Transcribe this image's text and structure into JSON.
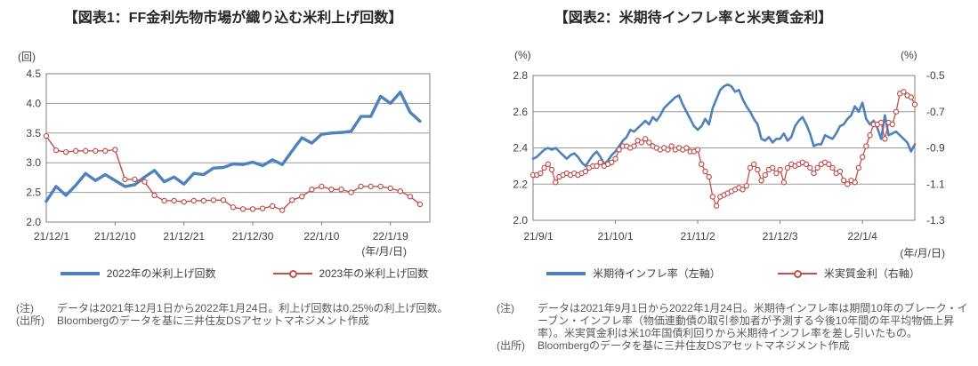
{
  "figure1": {
    "title": "【図表1：FF金利先物市場が織り込む米利上げ回数】",
    "y_unit": "(回)",
    "x_unit": "(年/月/日)",
    "notes": {
      "note_label": "(注)",
      "note_text": "データは2021年12月1日から2022年1月24日。利上げ回数は0.25%の利上げ回数。",
      "source_label": "(出所)",
      "source_text": "Bloombergのデータを基に三井住友DSアセットマネジメント作成"
    },
    "chart_data": {
      "type": "line",
      "title": "FF金利先物市場が織り込む米利上げ回数",
      "ylabel": "(回)",
      "xlabel": "(年/月/日)",
      "grid": true,
      "legend_position": "bottom",
      "ylim_left": [
        2.0,
        4.5
      ],
      "yticks_left": [
        2.0,
        2.5,
        3.0,
        3.5,
        4.0,
        4.5
      ],
      "xticks": [
        "21/12/1",
        "21/12/10",
        "21/12/21",
        "21/12/30",
        "22/1/10",
        "22/1/19"
      ],
      "xtick_indices": [
        0,
        7,
        14,
        21,
        28,
        35
      ],
      "x": [
        "21/12/1",
        "21/12/2",
        "21/12/3",
        "21/12/6",
        "21/12/7",
        "21/12/8",
        "21/12/9",
        "21/12/10",
        "21/12/13",
        "21/12/14",
        "21/12/15",
        "21/12/16",
        "21/12/17",
        "21/12/20",
        "21/12/21",
        "21/12/22",
        "21/12/23",
        "21/12/24",
        "21/12/27",
        "21/12/28",
        "21/12/29",
        "21/12/30",
        "21/12/31",
        "22/1/3",
        "22/1/4",
        "22/1/5",
        "22/1/6",
        "22/1/7",
        "22/1/10",
        "22/1/11",
        "22/1/12",
        "22/1/13",
        "22/1/14",
        "22/1/17",
        "22/1/18",
        "22/1/19",
        "22/1/20",
        "22/1/21",
        "22/1/24"
      ],
      "series": [
        {
          "name": "2022年の米利上げ回数",
          "axis": "left",
          "color": "#4F81BD",
          "width": 3.4,
          "marker": false,
          "values": [
            2.35,
            2.6,
            2.45,
            2.62,
            2.82,
            2.7,
            2.8,
            2.7,
            2.6,
            2.63,
            2.76,
            2.87,
            2.68,
            2.76,
            2.64,
            2.82,
            2.8,
            2.91,
            2.92,
            2.98,
            2.97,
            3.01,
            2.95,
            3.05,
            2.97,
            3.2,
            3.42,
            3.33,
            3.48,
            3.5,
            3.51,
            3.53,
            3.78,
            3.78,
            4.12,
            4.0,
            4.19,
            3.85,
            3.7
          ]
        },
        {
          "name": "2023年の米利上げ回数",
          "axis": "left",
          "color": "#C0504D",
          "width": 1.4,
          "marker": true,
          "values": [
            3.45,
            3.21,
            3.18,
            3.2,
            3.2,
            3.2,
            3.2,
            3.22,
            2.72,
            2.72,
            2.68,
            2.45,
            2.36,
            2.36,
            2.34,
            2.36,
            2.36,
            2.37,
            2.37,
            2.25,
            2.22,
            2.22,
            2.23,
            2.27,
            2.2,
            2.37,
            2.43,
            2.55,
            2.6,
            2.55,
            2.55,
            2.5,
            2.6,
            2.6,
            2.6,
            2.57,
            2.52,
            2.43,
            2.3
          ]
        }
      ]
    }
  },
  "figure2": {
    "title": "【図表2：米期待インフレ率と米実質金利】",
    "y_unit_left": "(%)",
    "y_unit_right": "(%)",
    "x_unit": "(年/月/日)",
    "notes": {
      "note_label": "(注)",
      "note_text": "データは2021年9月1日から2022年1月24日。米期待インフレ率は期間10年のブレーク・イーブン・インフレ率（物価連動債の取引参加者が予測する今後10年間の年平均物価上昇率）。米実質金利は米10年国債利回りから米期待インフレ率を差し引いたもの。",
      "source_label": "(出所)",
      "source_text": "Bloombergのデータを基に三井住友DSアセットマネジメント作成"
    },
    "chart_data": {
      "type": "line",
      "title": "米期待インフレ率と米実質金利",
      "ylabel": "(%)",
      "ylabel_right": "(%)",
      "xlabel": "(年/月/日)",
      "grid": true,
      "legend_position": "bottom",
      "ylim_left": [
        2.0,
        2.8
      ],
      "yticks_left": [
        2.0,
        2.2,
        2.4,
        2.6,
        2.8
      ],
      "ylim_right": [
        -1.3,
        -0.5
      ],
      "yticks_right": [
        -0.5,
        -0.7,
        -0.9,
        -1.1,
        -1.3
      ],
      "xticks": [
        "21/9/1",
        "21/10/1",
        "21/11/2",
        "21/12/3",
        "22/1/4"
      ],
      "xtick_indices": [
        0,
        22,
        44,
        66,
        88
      ],
      "x": [
        "21/9/1",
        "21/9/2",
        "21/9/3",
        "21/9/6",
        "21/9/7",
        "21/9/8",
        "21/9/9",
        "21/9/10",
        "21/9/13",
        "21/9/14",
        "21/9/15",
        "21/9/16",
        "21/9/17",
        "21/9/20",
        "21/9/21",
        "21/9/22",
        "21/9/23",
        "21/9/24",
        "21/9/27",
        "21/9/28",
        "21/9/29",
        "21/9/30",
        "21/10/1",
        "21/10/4",
        "21/10/5",
        "21/10/6",
        "21/10/7",
        "21/10/8",
        "21/10/11",
        "21/10/12",
        "21/10/13",
        "21/10/14",
        "21/10/15",
        "21/10/18",
        "21/10/19",
        "21/10/20",
        "21/10/21",
        "21/10/22",
        "21/10/25",
        "21/10/26",
        "21/10/27",
        "21/10/28",
        "21/10/29",
        "21/11/1",
        "21/11/2",
        "21/11/3",
        "21/11/4",
        "21/11/5",
        "21/11/8",
        "21/11/9",
        "21/11/10",
        "21/11/11",
        "21/11/12",
        "21/11/15",
        "21/11/16",
        "21/11/17",
        "21/11/18",
        "21/11/19",
        "21/11/22",
        "21/11/23",
        "21/11/24",
        "21/11/26",
        "21/11/29",
        "21/11/30",
        "21/12/1",
        "21/12/2",
        "21/12/3",
        "21/12/6",
        "21/12/7",
        "21/12/8",
        "21/12/9",
        "21/12/10",
        "21/12/13",
        "21/12/14",
        "21/12/15",
        "21/12/16",
        "21/12/17",
        "21/12/20",
        "21/12/21",
        "21/12/22",
        "21/12/23",
        "21/12/24",
        "21/12/27",
        "21/12/28",
        "21/12/29",
        "21/12/30",
        "21/12/31",
        "22/1/3",
        "22/1/4",
        "22/1/5",
        "22/1/6",
        "22/1/7",
        "22/1/10",
        "22/1/11",
        "22/1/12",
        "22/1/13",
        "22/1/14",
        "22/1/17",
        "22/1/18",
        "22/1/19",
        "22/1/20",
        "22/1/21",
        "22/1/24"
      ],
      "series": [
        {
          "name": "米期待インフレ率（左軸）",
          "axis": "left",
          "color": "#4F81BD",
          "width": 2.6,
          "marker": false,
          "values": [
            2.34,
            2.35,
            2.37,
            2.39,
            2.4,
            2.39,
            2.4,
            2.38,
            2.36,
            2.34,
            2.36,
            2.37,
            2.35,
            2.32,
            2.3,
            2.33,
            2.36,
            2.38,
            2.35,
            2.31,
            2.33,
            2.36,
            2.38,
            2.41,
            2.44,
            2.46,
            2.5,
            2.49,
            2.51,
            2.53,
            2.55,
            2.53,
            2.57,
            2.55,
            2.58,
            2.62,
            2.64,
            2.66,
            2.68,
            2.69,
            2.64,
            2.6,
            2.56,
            2.52,
            2.5,
            2.52,
            2.56,
            2.53,
            2.62,
            2.67,
            2.72,
            2.74,
            2.75,
            2.74,
            2.71,
            2.72,
            2.67,
            2.63,
            2.6,
            2.56,
            2.53,
            2.45,
            2.44,
            2.46,
            2.43,
            2.45,
            2.45,
            2.48,
            2.44,
            2.46,
            2.52,
            2.55,
            2.57,
            2.53,
            2.48,
            2.41,
            2.42,
            2.42,
            2.47,
            2.46,
            2.45,
            2.48,
            2.52,
            2.53,
            2.56,
            2.58,
            2.63,
            2.6,
            2.65,
            2.56,
            2.53,
            2.55,
            2.51,
            2.45,
            2.58,
            2.47,
            2.48,
            2.49,
            2.47,
            2.45,
            2.43,
            2.38,
            2.42
          ]
        },
        {
          "name": "米実質金利（右軸）",
          "axis": "right",
          "color": "#C0504D",
          "width": 1.3,
          "marker": true,
          "values": [
            -1.05,
            -1.05,
            -1.04,
            -1.01,
            -0.99,
            -1.02,
            -1.09,
            -1.06,
            -1.05,
            -1.04,
            -1.05,
            -1.04,
            -1.05,
            -1.04,
            -1.03,
            -1.01,
            -1.0,
            -1.0,
            -0.98,
            -1.0,
            -0.99,
            -0.98,
            -0.96,
            -0.91,
            -0.89,
            -0.89,
            -0.9,
            -0.89,
            -0.86,
            -0.87,
            -0.85,
            -0.87,
            -0.89,
            -0.9,
            -0.91,
            -0.9,
            -0.91,
            -0.89,
            -0.91,
            -0.9,
            -0.91,
            -0.9,
            -0.92,
            -0.92,
            -0.91,
            -0.99,
            -1.03,
            -1.06,
            -1.17,
            -1.22,
            -1.17,
            -1.16,
            -1.15,
            -1.14,
            -1.13,
            -1.12,
            -1.13,
            -1.11,
            -1.01,
            -0.99,
            -1.02,
            -1.08,
            -1.05,
            -1.02,
            -1.01,
            -1.04,
            -1.02,
            -1.09,
            -1.01,
            -0.99,
            -1.0,
            -0.99,
            -0.98,
            -0.99,
            -1.01,
            -1.04,
            -1.01,
            -0.99,
            -0.98,
            -0.99,
            -1.01,
            -1.04,
            -1.03,
            -1.08,
            -1.1,
            -1.08,
            -1.09,
            -1.01,
            -0.95,
            -0.89,
            -0.83,
            -0.77,
            -0.77,
            -0.76,
            -0.85,
            -0.76,
            -0.77,
            -0.7,
            -0.6,
            -0.59,
            -0.61,
            -0.62,
            -0.66
          ]
        }
      ]
    }
  }
}
